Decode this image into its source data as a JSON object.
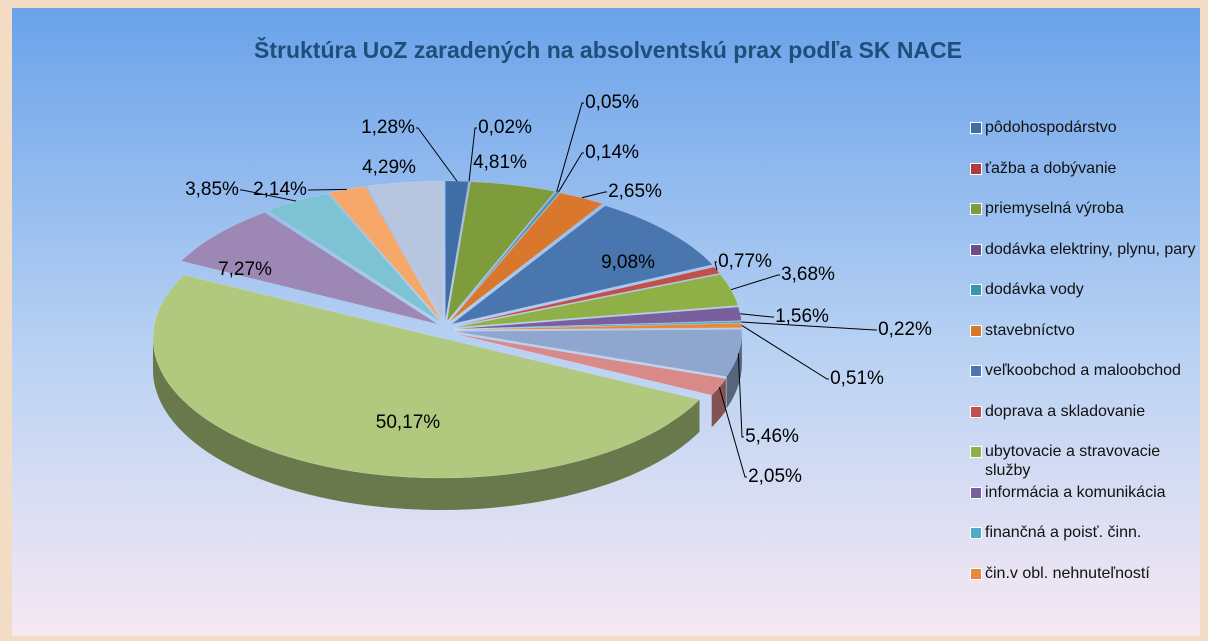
{
  "chart_data": {
    "type": "pie3d",
    "title": "Štruktúra  UoZ zaradených na absolventskú prax podľa SK NACE",
    "categories": [
      "pôdohospodárstvo",
      "ťažba a dobývanie",
      "priemyselná výroba",
      "dodávka elektriny, plynu, pary",
      "dodávka vody",
      "stavebníctvo",
      "veľkoobchod a maloobchod",
      "doprava a skladovanie",
      "ubytovacie a stravovacie služby",
      "informácia a komunikácia",
      "finančná a poisť. činn.",
      "čin.v obl. nehnuteľností",
      null,
      null,
      null,
      null,
      null,
      null,
      null
    ],
    "values": [
      1.28,
      0.02,
      4.81,
      0.05,
      0.14,
      2.65,
      9.08,
      0.77,
      3.68,
      1.56,
      0.22,
      0.51,
      5.46,
      2.05,
      50.17,
      7.27,
      3.85,
      2.14,
      4.29
    ],
    "value_labels": [
      "1,28%",
      "0,02%",
      "4,81%",
      "0,05%",
      "0,14%",
      "2,65%",
      "9,08%",
      "0,77%",
      "3,68%",
      "1,56%",
      "0,22%",
      "0,51%",
      "5,46%",
      "2,05%",
      "50,17%",
      "7,27%",
      "3,85%",
      "2,14%",
      "4,29%"
    ],
    "colors": [
      "#3f6ea6",
      "#b03c3a",
      "#7f9c3c",
      "#6a4f8c",
      "#3596ae",
      "#d9782d",
      "#4a76b0",
      "#c0504d",
      "#8fb046",
      "#7a5f9e",
      "#4aacc5",
      "#e8883a",
      "#8fa7cf",
      "#d88a88",
      "#b0c97f",
      "#9d88b5",
      "#7ec3d4",
      "#f5a86a",
      "#b7c6de"
    ],
    "legend": "right"
  }
}
